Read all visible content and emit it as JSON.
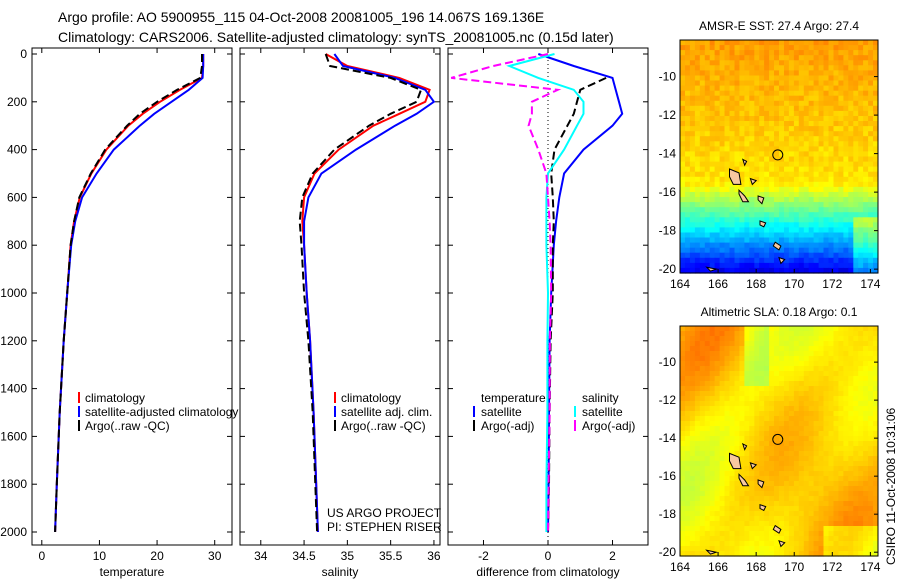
{
  "title": {
    "line1": "Argo profile: AO 5900955_115 04-Oct-2008 20081005_196 14.067S 169.136E",
    "line2": "Climatology: CARS2006. Satellite-adjusted climatology: synTS_20081005.nc (0.15d later)"
  },
  "credit": {
    "line1": "US ARGO PROJECT",
    "line2": "PI: STEPHEN RISER"
  },
  "timestamp": "CSIRO 11-Oct-2008 10:31:06",
  "colors": {
    "red": "#ff0000",
    "blue": "#0000ff",
    "black": "#000000",
    "cyan": "#00ffff",
    "magenta": "#ff00ff"
  },
  "chart_data": [
    {
      "type": "line",
      "id": "temperature",
      "xlabel": "temperature",
      "ylabel": "",
      "xlim": [
        -1.7,
        33
      ],
      "ylim": [
        2055,
        0
      ],
      "xticks": [
        0,
        10,
        20,
        30
      ],
      "yticks": [
        0,
        200,
        400,
        600,
        800,
        1000,
        1200,
        1400,
        1600,
        1800,
        2000
      ],
      "depth": [
        0,
        50,
        100,
        150,
        200,
        250,
        300,
        400,
        500,
        600,
        700,
        800,
        1000,
        1200,
        1500,
        1800,
        2000
      ],
      "series": [
        {
          "name": "climatology",
          "color": "#ff0000",
          "dash": false,
          "values": [
            28,
            28,
            27.8,
            24,
            20.5,
            17.5,
            15,
            11.2,
            8.6,
            6.6,
            5.6,
            5,
            4.4,
            3.8,
            3.1,
            2.6,
            2.3
          ]
        },
        {
          "name": "satellite-adjusted climatology",
          "color": "#0000ff",
          "dash": false,
          "values": [
            28,
            28,
            27.9,
            25.5,
            22.5,
            19.5,
            17,
            12.5,
            9.5,
            7,
            5.8,
            5.1,
            4.4,
            3.8,
            3.1,
            2.6,
            2.3
          ]
        },
        {
          "name": "Argo(..raw -QC)",
          "color": "#000000",
          "dash": true,
          "values": [
            27.8,
            27.8,
            27.5,
            23.5,
            20,
            17,
            14.8,
            11,
            8.5,
            6.5,
            5.6,
            5,
            4.4,
            3.8,
            3.1,
            2.6,
            2.3
          ]
        }
      ],
      "legend": [
        "climatology",
        "satellite-adjusted climatology",
        "Argo(..raw -QC)"
      ]
    },
    {
      "type": "line",
      "id": "salinity",
      "xlabel": "salinity",
      "xlim": [
        33.76,
        36.07
      ],
      "ylim": [
        2055,
        0
      ],
      "xticks": [
        34,
        34.5,
        35,
        35.5,
        36
      ],
      "depth": [
        0,
        50,
        100,
        150,
        200,
        250,
        300,
        400,
        500,
        600,
        700,
        800,
        1000,
        1200,
        1500,
        1800,
        2000
      ],
      "series": [
        {
          "name": "climatology",
          "color": "#ff0000",
          "dash": false,
          "values": [
            34.75,
            35.0,
            35.6,
            35.95,
            35.9,
            35.6,
            35.3,
            34.9,
            34.62,
            34.5,
            34.48,
            34.5,
            34.53,
            34.57,
            34.61,
            34.64,
            34.66
          ]
        },
        {
          "name": "satellite adj. clim.",
          "color": "#0000ff",
          "dash": false,
          "values": [
            34.85,
            34.95,
            35.55,
            35.9,
            36.0,
            35.8,
            35.55,
            35.1,
            34.7,
            34.55,
            34.5,
            34.5,
            34.53,
            34.57,
            34.61,
            34.64,
            34.66
          ]
        },
        {
          "name": "Argo(..raw -QC)",
          "color": "#000000",
          "dash": true,
          "values": [
            34.75,
            34.8,
            35.5,
            35.85,
            35.8,
            35.5,
            35.25,
            34.85,
            34.6,
            34.48,
            34.45,
            34.47,
            34.5,
            34.55,
            34.6,
            34.63,
            34.65
          ]
        }
      ],
      "legend": [
        "climatology",
        "satellite adj. clim.",
        "Argo(..raw -QC)"
      ]
    },
    {
      "type": "line",
      "id": "difference",
      "xlabel": "difference from climatology",
      "xlim": [
        -3.1,
        3.1
      ],
      "ylim": [
        2055,
        0
      ],
      "xticks": [
        -2,
        0,
        2
      ],
      "depth": [
        0,
        50,
        100,
        150,
        200,
        250,
        300,
        400,
        500,
        600,
        700,
        800,
        1000,
        1200,
        1500,
        1800,
        2000
      ],
      "series": [
        {
          "name": "temperature satellite",
          "color": "#0000ff",
          "dash": false,
          "values": [
            -0.3,
            0.8,
            2.0,
            2.1,
            2.2,
            2.3,
            2.0,
            1.1,
            0.5,
            0.35,
            0.25,
            0.18,
            0.1,
            0.05,
            0.03,
            0.02,
            0.0
          ]
        },
        {
          "name": "temperature Argo(-adj)",
          "color": "#000000",
          "dash": true,
          "values": [
            null,
            null,
            1.8,
            1.0,
            0.9,
            0.8,
            0.6,
            0.2,
            0.1,
            0.15,
            0.18,
            0.15,
            0.15,
            0.08,
            0.05,
            0.03,
            0.0
          ]
        },
        {
          "name": "salinity satellite",
          "color": "#00ffff",
          "dash": false,
          "values": [
            0.2,
            -1.2,
            -0.3,
            0.8,
            1.1,
            1.1,
            0.9,
            0.5,
            0.0,
            -0.05,
            -0.05,
            -0.05,
            0,
            -0.02,
            -0.02,
            -0.05,
            -0.05
          ]
        },
        {
          "name": "salinity Argo(-adj)",
          "color": "#ff00ff",
          "dash": true,
          "values": [
            0,
            -1.7,
            -3.0,
            0.3,
            -0.5,
            -0.5,
            -0.6,
            -0.3,
            -0.05,
            0.0,
            0.05,
            0.08,
            0.1,
            0.06,
            0.05,
            0.02,
            0.0
          ]
        }
      ],
      "legend_headers": [
        "temperature",
        "salinity"
      ],
      "legend": [
        "satellite",
        "Argo(-adj)",
        "satellite",
        "Argo(-adj)"
      ]
    },
    {
      "type": "heatmap",
      "id": "sst-map",
      "title": "AMSR-E SST: 27.4 Argo: 27.4",
      "xlim": [
        164,
        174.4
      ],
      "ylim": [
        -20.2,
        -8.1
      ],
      "xticks": [
        164,
        166,
        168,
        170,
        172,
        174
      ],
      "yticks": [
        -10,
        -12,
        -14,
        -16,
        -18,
        -20
      ],
      "marker": {
        "lon": 169.136,
        "lat": -14.067
      }
    },
    {
      "type": "heatmap",
      "id": "sla-map",
      "title": "Altimetric SLA: 0.18 Argo: 0.1",
      "xlim": [
        164,
        174.4
      ],
      "ylim": [
        -20.2,
        -8.1
      ],
      "xticks": [
        164,
        166,
        168,
        170,
        172,
        174
      ],
      "yticks": [
        -10,
        -12,
        -14,
        -16,
        -18,
        -20
      ],
      "marker": {
        "lon": 169.136,
        "lat": -14.067
      }
    }
  ]
}
